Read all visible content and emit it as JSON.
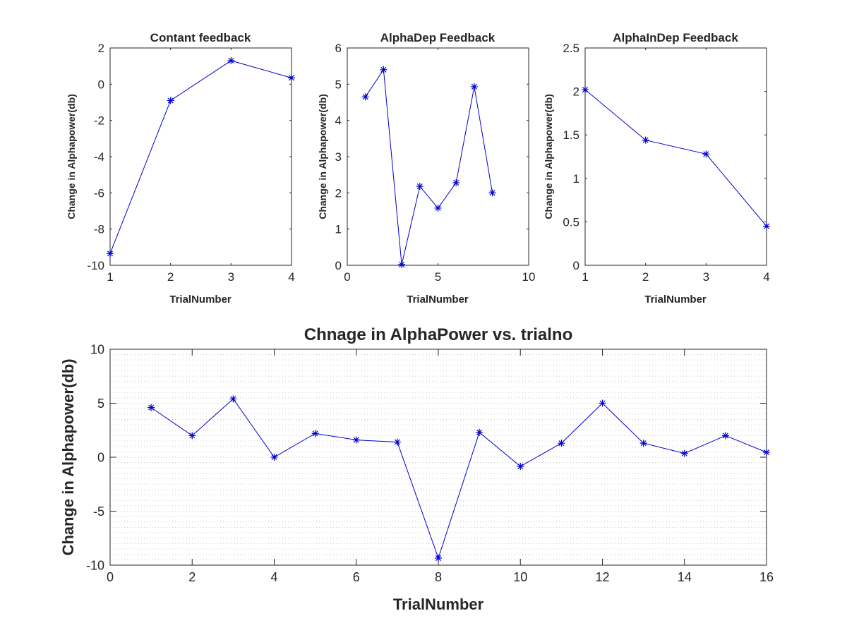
{
  "colors": {
    "series": "#0000cc",
    "axis": "#262626",
    "grid": "#c8c8c8"
  },
  "chart_data": [
    {
      "id": "plot1",
      "type": "line",
      "title": "Contant feedback",
      "xlabel": "TrialNumber",
      "ylabel": "Change in Alphapower(db)",
      "xlim": [
        1,
        4
      ],
      "ylim": [
        -10,
        2
      ],
      "xticks": [
        1,
        2,
        3,
        4
      ],
      "yticks": [
        -10,
        -8,
        -6,
        -4,
        -2,
        0,
        2
      ],
      "minor_grid": false,
      "marker": "asterisk",
      "x": [
        1,
        2,
        3,
        4
      ],
      "y": [
        -9.35,
        -0.9,
        1.3,
        0.35
      ]
    },
    {
      "id": "plot2",
      "type": "line",
      "title": "AlphaDep Feedback",
      "xlabel": "TrialNumber",
      "ylabel": "Change in Alphapower(db)",
      "xlim": [
        0,
        10
      ],
      "ylim": [
        0,
        6
      ],
      "xticks": [
        0,
        5,
        10
      ],
      "yticks": [
        0,
        1,
        2,
        3,
        4,
        5,
        6
      ],
      "minor_grid": false,
      "marker": "asterisk",
      "x": [
        1,
        2,
        3,
        4,
        5,
        6,
        7,
        8
      ],
      "y": [
        4.65,
        5.4,
        0.02,
        2.18,
        1.58,
        2.28,
        4.93,
        2.0
      ]
    },
    {
      "id": "plot3",
      "type": "line",
      "title": "AlphaInDep Feedback",
      "xlabel": "TrialNumber",
      "ylabel": "Change in Alphapower(db)",
      "xlim": [
        1,
        4
      ],
      "ylim": [
        0,
        2.5
      ],
      "xticks": [
        1,
        2,
        3,
        4
      ],
      "yticks": [
        0,
        0.5,
        1,
        1.5,
        2,
        2.5
      ],
      "minor_grid": false,
      "marker": "asterisk",
      "x": [
        1,
        2,
        3,
        4
      ],
      "y": [
        2.02,
        1.44,
        1.28,
        0.45
      ]
    },
    {
      "id": "plot4",
      "type": "line",
      "title": "Chnage in AlphaPower  vs. trialno",
      "xlabel": "TrialNumber",
      "ylabel": "Change in Alphapower(db)",
      "xlim": [
        0,
        16
      ],
      "ylim": [
        -10,
        10
      ],
      "xticks": [
        0,
        2,
        4,
        6,
        8,
        10,
        12,
        14,
        16
      ],
      "yticks": [
        -10,
        -5,
        0,
        5,
        10
      ],
      "minor_grid": true,
      "minor_grid_step": 0.5,
      "marker": "asterisk",
      "x": [
        1,
        2,
        3,
        4,
        5,
        6,
        7,
        8,
        9,
        10,
        11,
        12,
        13,
        14,
        15,
        16
      ],
      "y": [
        4.6,
        2.0,
        5.4,
        0.0,
        2.2,
        1.6,
        1.4,
        -9.35,
        2.3,
        -0.85,
        1.3,
        5.0,
        1.3,
        0.35,
        2.0,
        0.45
      ]
    }
  ]
}
